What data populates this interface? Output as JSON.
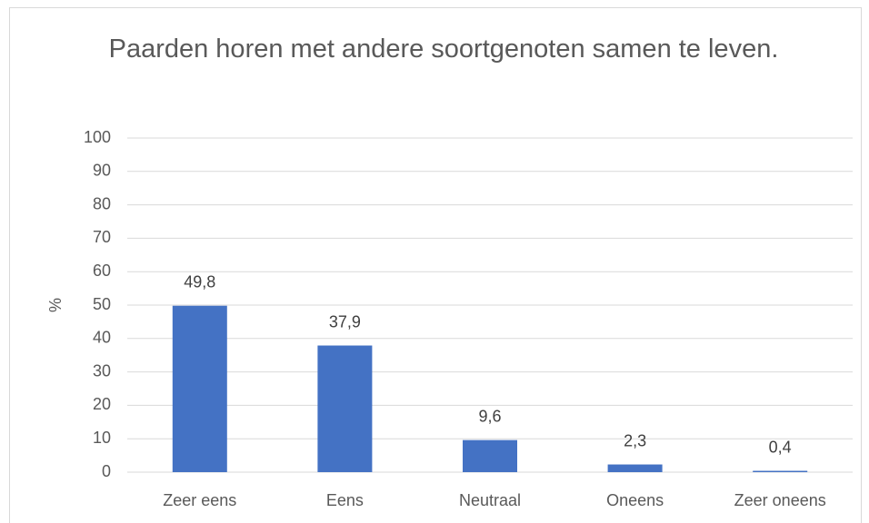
{
  "chart_data": {
    "type": "bar",
    "title": "Paarden horen met andere soortgenoten samen te leven.",
    "y_label": "%",
    "categories": [
      "Zeer eens",
      "Eens",
      "Neutraal",
      "Oneens",
      "Zeer oneens"
    ],
    "values": [
      49.8,
      37.9,
      9.6,
      2.3,
      0.4
    ],
    "value_labels": [
      "49,8",
      "37,9",
      "9,6",
      "2,3",
      "0,4"
    ],
    "color": "#4472c4",
    "ylim": [
      0,
      100
    ],
    "yticks": [
      0,
      10,
      20,
      30,
      40,
      50,
      60,
      70,
      80,
      90,
      100
    ],
    "grid": true
  }
}
